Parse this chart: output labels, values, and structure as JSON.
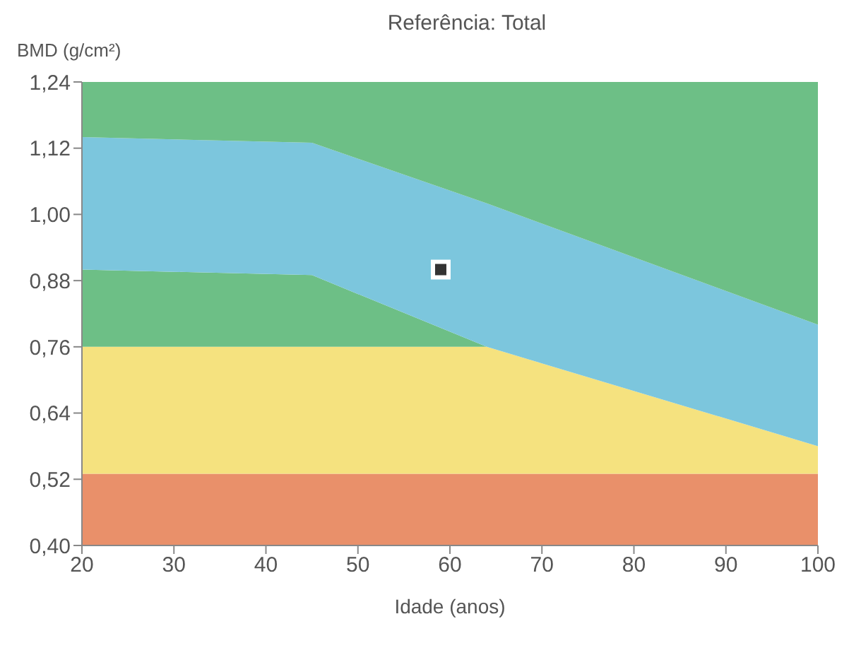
{
  "chart_data": {
    "type": "area",
    "title": "Referência: Total",
    "ylabel": "BMD (g/cm²)",
    "xlabel": "Idade (anos)",
    "x": [
      20,
      45,
      64,
      100
    ],
    "xlim": [
      20,
      100
    ],
    "xticks": [
      20,
      30,
      40,
      50,
      60,
      70,
      80,
      90,
      100
    ],
    "ylim": [
      0.4,
      1.24
    ],
    "yticks": [
      {
        "value": 0.4,
        "label": "0,40"
      },
      {
        "value": 0.52,
        "label": "0,52"
      },
      {
        "value": 0.64,
        "label": "0,64"
      },
      {
        "value": 0.76,
        "label": "0,76"
      },
      {
        "value": 0.88,
        "label": "0,88"
      },
      {
        "value": 1.0,
        "label": "1,00"
      },
      {
        "value": 1.12,
        "label": "1,12"
      },
      {
        "value": 1.24,
        "label": "1,24"
      }
    ],
    "series": [
      {
        "color": "#e9906a",
        "values": [
          0.53,
          0.53,
          0.53,
          0.53
        ]
      },
      {
        "color": "#f5e27f",
        "values": [
          0.76,
          0.76,
          0.76,
          0.58
        ]
      },
      {
        "color": "#6dbf86",
        "values": [
          0.9,
          0.89,
          0.76,
          0.58
        ]
      },
      {
        "color": "#7cc6dd",
        "values": [
          1.14,
          1.13,
          1.02,
          0.8
        ]
      },
      {
        "color": "#6dbf86",
        "values": [
          1.24,
          1.24,
          1.24,
          1.24
        ]
      },
      {
        "type": "scatter",
        "color": "#333333",
        "marker": "square",
        "x": [
          59
        ],
        "values": [
          0.9
        ]
      }
    ]
  }
}
